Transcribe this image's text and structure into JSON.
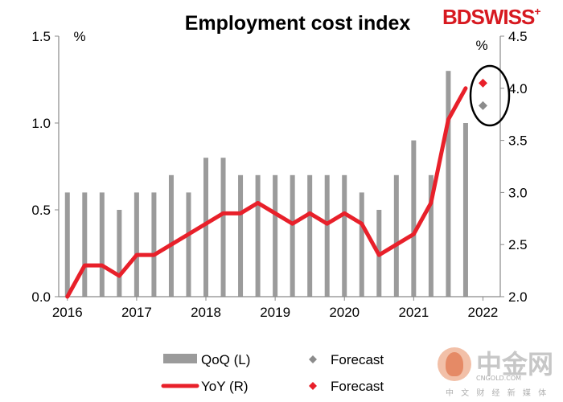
{
  "chart_data": {
    "type": "bar",
    "title": "Employment cost index",
    "left_axis": {
      "unit_label": "%",
      "ylim": [
        0,
        1.5
      ],
      "ticks": [
        "0.0",
        "0.5",
        "1.0",
        "1.5"
      ]
    },
    "right_axis": {
      "unit_label": "%",
      "ylim": [
        2.0,
        4.5
      ],
      "ticks": [
        "2.0",
        "2.5",
        "3.0",
        "3.5",
        "4.0",
        "4.5"
      ]
    },
    "x_ticks": [
      "2016",
      "2017",
      "2018",
      "2019",
      "2020",
      "2021",
      "2022"
    ],
    "series": [
      {
        "name": "QoQ (L)",
        "type": "bar",
        "axis": "left",
        "color": "#9b9b9b",
        "values": [
          0.6,
          0.6,
          0.6,
          0.5,
          0.6,
          0.6,
          0.7,
          0.6,
          0.8,
          0.8,
          0.7,
          0.7,
          0.7,
          0.7,
          0.7,
          0.7,
          0.7,
          0.6,
          0.5,
          0.7,
          0.9,
          0.7,
          1.3,
          1.0
        ]
      },
      {
        "name": "YoY (R)",
        "type": "line",
        "axis": "right",
        "color": "#e8202a",
        "values": [
          2.0,
          2.3,
          2.3,
          2.2,
          2.4,
          2.4,
          2.5,
          2.6,
          2.7,
          2.8,
          2.8,
          2.9,
          2.8,
          2.7,
          2.8,
          2.7,
          2.8,
          2.7,
          2.4,
          2.5,
          2.6,
          2.9,
          3.7,
          4.0
        ]
      }
    ],
    "forecasts": [
      {
        "name": "Forecast",
        "for_series": "QoQ (L)",
        "axis": "left",
        "color": "#8c8c8c",
        "value": 1.1
      },
      {
        "name": "Forecast",
        "for_series": "YoY (R)",
        "axis": "right",
        "color": "#e8202a",
        "value": 4.05
      }
    ],
    "legend": [
      {
        "label": "QoQ (L)",
        "marker": "bar",
        "color": "#9b9b9b"
      },
      {
        "label": "Forecast",
        "marker": "diamond",
        "color": "#8c8c8c"
      },
      {
        "label": "YoY (R)",
        "marker": "line",
        "color": "#e8202a"
      },
      {
        "label": "Forecast",
        "marker": "diamond",
        "color": "#e8202a"
      }
    ]
  },
  "branding": {
    "logo_text": "BDSWISS",
    "logo_plus": "+",
    "watermark_cn": "中金网",
    "watermark_url": "CNGOLD.COM",
    "watermark_sub": "中 文 财 经 新 媒 体"
  }
}
